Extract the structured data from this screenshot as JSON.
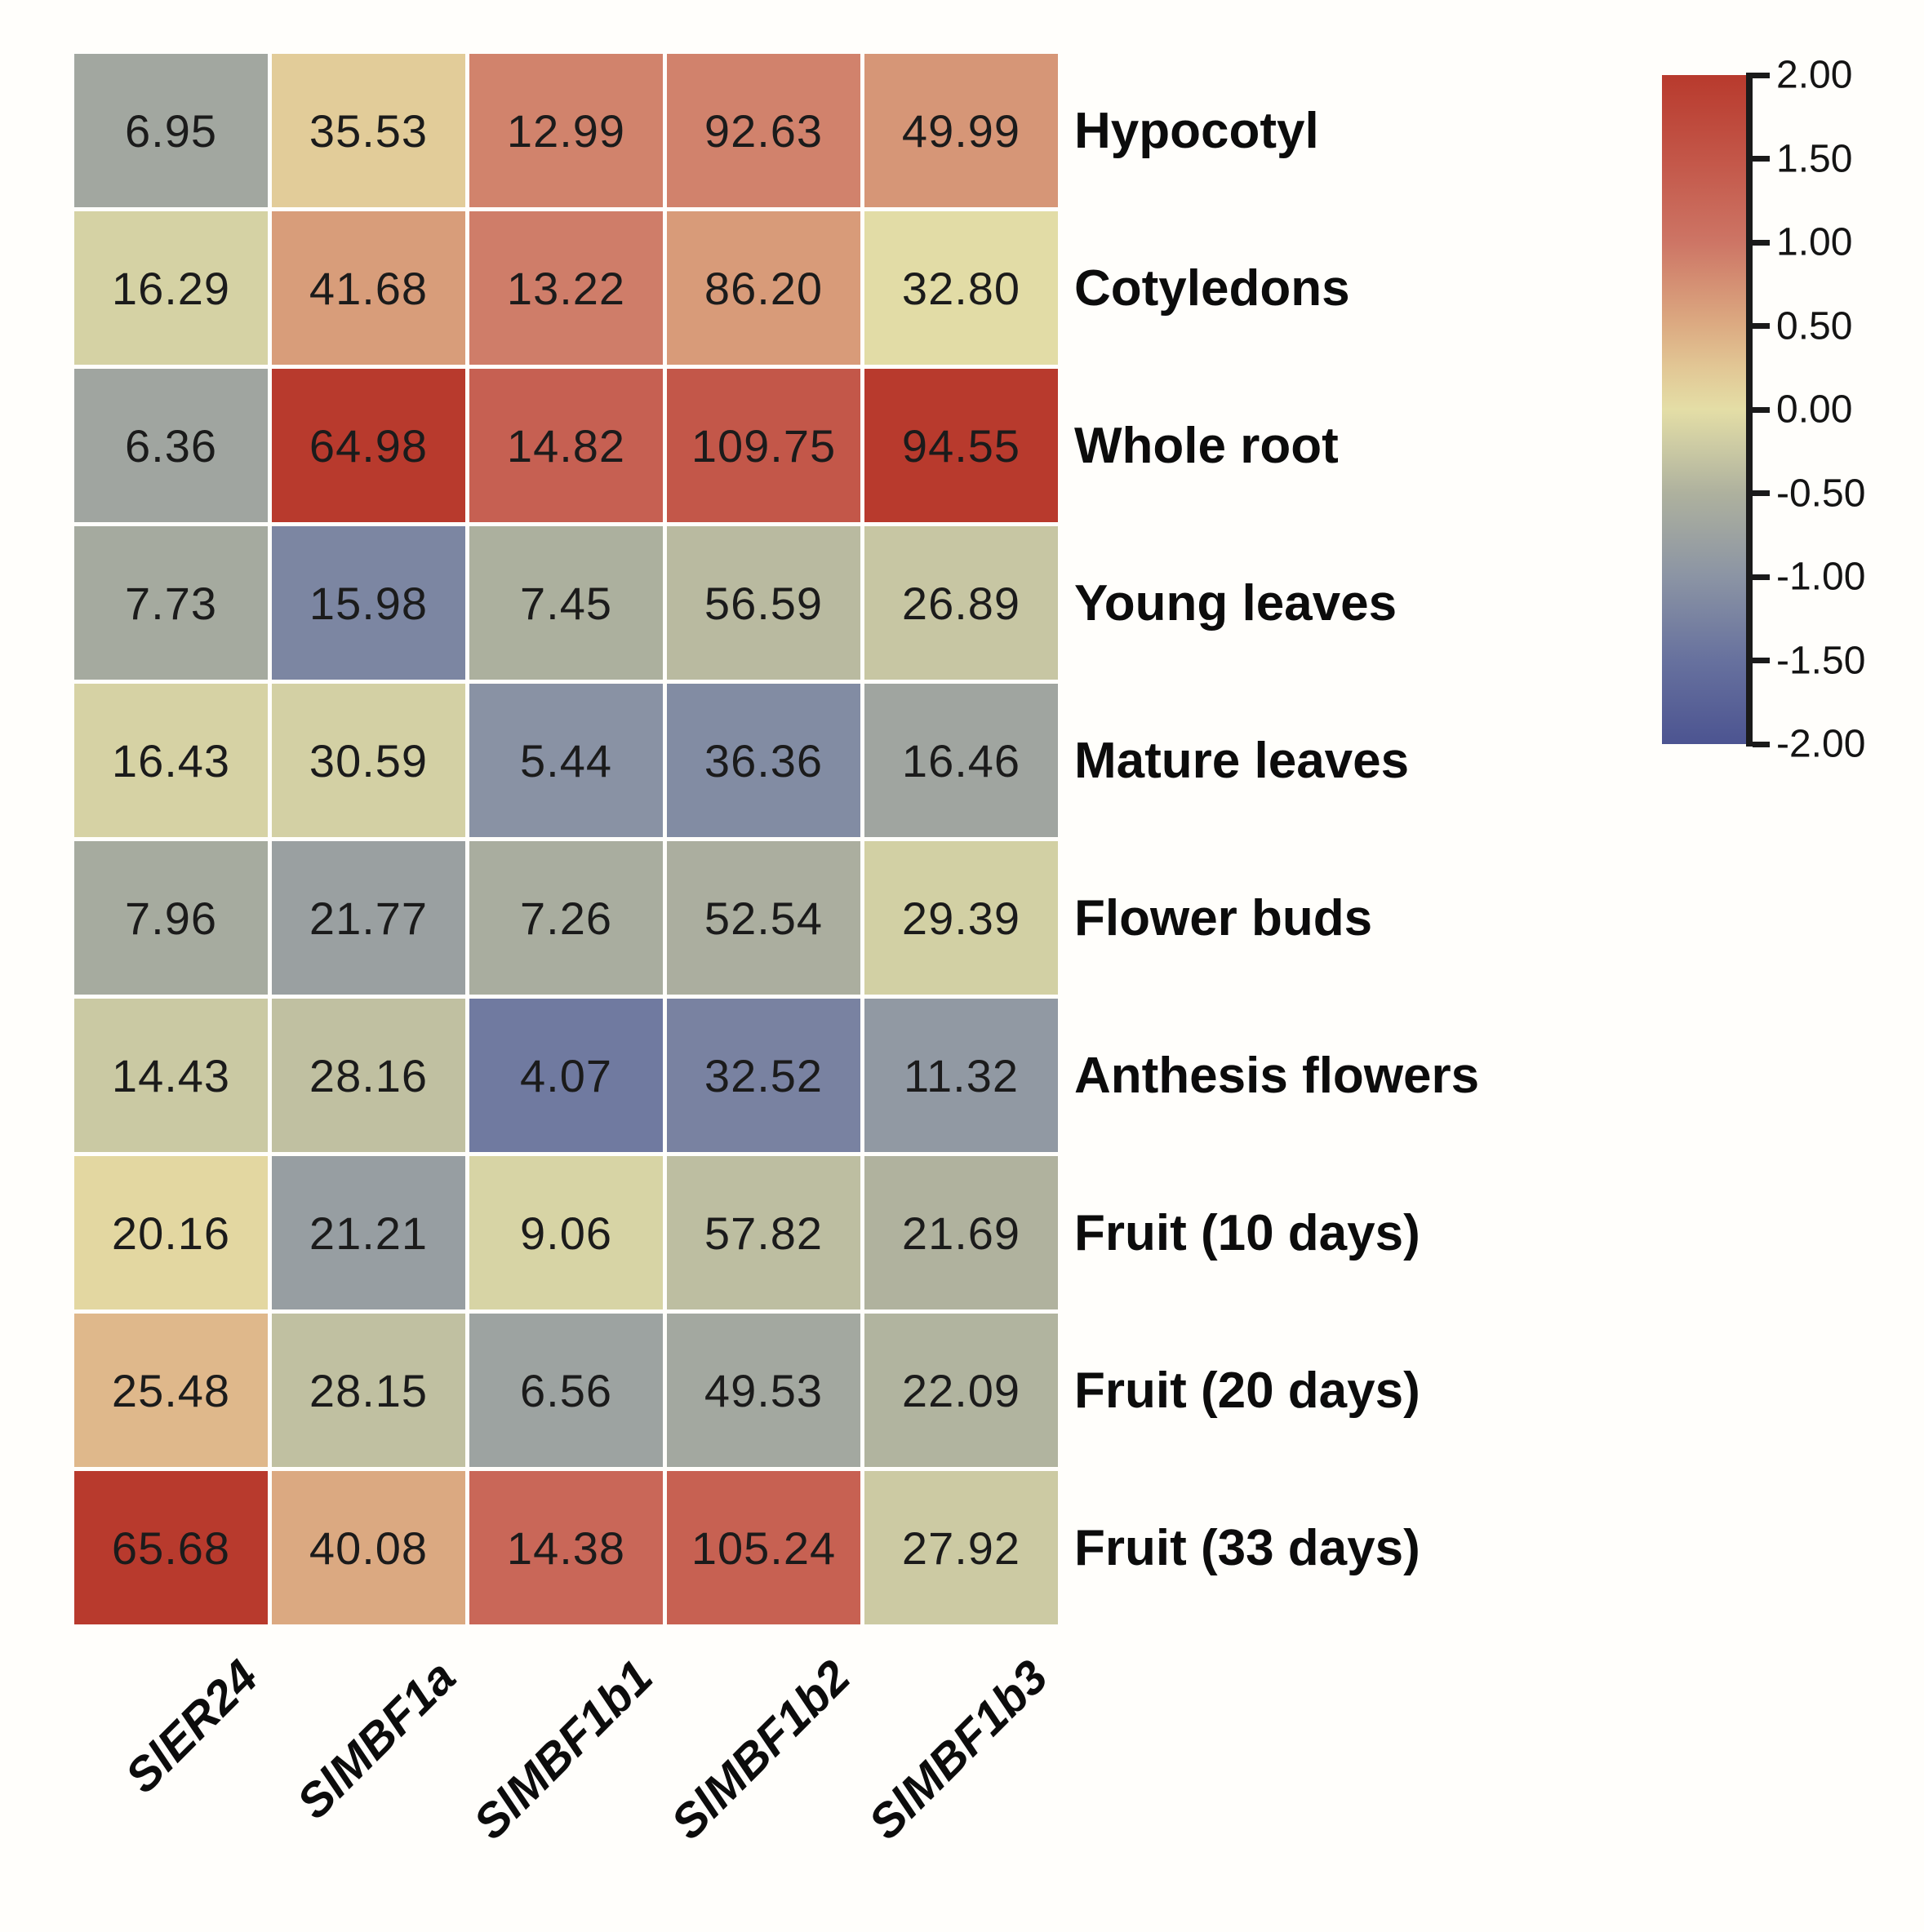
{
  "chart_data": {
    "type": "heatmap",
    "title": "",
    "rows": [
      "Hypocotyl",
      "Cotyledons",
      "Whole root",
      "Young leaves",
      "Mature leaves",
      "Flower buds",
      "Anthesis flowers",
      "Fruit (10 days)",
      "Fruit (20 days)",
      "Fruit (33 days)"
    ],
    "columns": [
      "SlER24",
      "SlMBF1a",
      "SlMBF1b1",
      "SlMBF1b2",
      "SlMBF1b3"
    ],
    "values": [
      [
        "6.95",
        "35.53",
        "12.99",
        "92.63",
        "49.99"
      ],
      [
        "16.29",
        "41.68",
        "13.22",
        "86.20",
        "32.80"
      ],
      [
        "6.36",
        "64.98",
        "14.82",
        "109.75",
        "94.55"
      ],
      [
        "7.73",
        "15.98",
        "7.45",
        "56.59",
        "26.89"
      ],
      [
        "16.43",
        "30.59",
        "5.44",
        "36.36",
        "16.46"
      ],
      [
        "7.96",
        "21.77",
        "7.26",
        "52.54",
        "29.39"
      ],
      [
        "14.43",
        "28.16",
        "4.07",
        "32.52",
        "11.32"
      ],
      [
        "20.16",
        "21.21",
        "9.06",
        "57.82",
        "21.69"
      ],
      [
        "25.48",
        "28.15",
        "6.56",
        "49.53",
        "22.09"
      ],
      [
        "65.68",
        "40.08",
        "14.38",
        "105.24",
        "27.92"
      ]
    ],
    "cell_text_color": "#1b1b1b",
    "normalization": "per-column z-score, clipped to [-2, 2]",
    "grid_gap_color": "#ffffff",
    "legend_position": "right",
    "colorbar": {
      "ticks": [
        "2.00",
        "1.50",
        "1.00",
        "0.50",
        "0.00",
        "-0.50",
        "-1.00",
        "-1.50",
        "-2.00"
      ],
      "range_min": -2,
      "range_max": 2,
      "axis_color": "#1a1a1a",
      "stops": [
        {
          "z": 2.0,
          "color": "#b83a2d"
        },
        {
          "z": 1.5,
          "color": "#c35648"
        },
        {
          "z": 1.0,
          "color": "#cd7565"
        },
        {
          "z": 0.5,
          "color": "#dcab82"
        },
        {
          "z": 0.25,
          "color": "#e2c795"
        },
        {
          "z": 0.0,
          "color": "#e4dea6"
        },
        {
          "z": -0.25,
          "color": "#c9c8a3"
        },
        {
          "z": -0.5,
          "color": "#aeb19e"
        },
        {
          "z": -1.0,
          "color": "#8b94a4"
        },
        {
          "z": -1.5,
          "color": "#67719e"
        },
        {
          "z": -2.0,
          "color": "#4c5491"
        }
      ]
    }
  }
}
